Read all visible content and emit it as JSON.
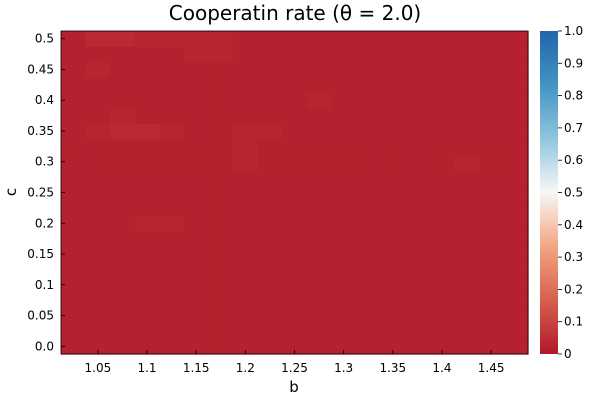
{
  "chart_data": {
    "type": "heatmap",
    "title": "Cooperatin rate (θ = 2.0)",
    "xlabel": "b",
    "ylabel": "c",
    "x": [
      1.025,
      1.05,
      1.075,
      1.1,
      1.125,
      1.15,
      1.175,
      1.2,
      1.225,
      1.25,
      1.275,
      1.3,
      1.325,
      1.35,
      1.375,
      1.4,
      1.425,
      1.45,
      1.475
    ],
    "y": [
      0.0,
      0.025,
      0.05,
      0.075,
      0.1,
      0.125,
      0.15,
      0.175,
      0.2,
      0.225,
      0.25,
      0.275,
      0.3,
      0.325,
      0.35,
      0.375,
      0.4,
      0.425,
      0.45,
      0.475,
      0.5
    ],
    "values": [
      [
        0.02,
        0.02,
        0.02,
        0.02,
        0.02,
        0.02,
        0.02,
        0.02,
        0.02,
        0.02,
        0.02,
        0.02,
        0.02,
        0.02,
        0.02,
        0.02,
        0.02,
        0.02,
        0.02
      ],
      [
        0.02,
        0.02,
        0.02,
        0.02,
        0.02,
        0.02,
        0.02,
        0.02,
        0.02,
        0.02,
        0.02,
        0.02,
        0.02,
        0.02,
        0.02,
        0.02,
        0.02,
        0.02,
        0.02
      ],
      [
        0.02,
        0.02,
        0.02,
        0.02,
        0.02,
        0.02,
        0.02,
        0.02,
        0.02,
        0.02,
        0.02,
        0.02,
        0.02,
        0.02,
        0.02,
        0.02,
        0.02,
        0.02,
        0.02
      ],
      [
        0.02,
        0.02,
        0.02,
        0.02,
        0.02,
        0.02,
        0.02,
        0.02,
        0.02,
        0.02,
        0.02,
        0.02,
        0.02,
        0.02,
        0.02,
        0.02,
        0.02,
        0.02,
        0.02
      ],
      [
        0.02,
        0.02,
        0.02,
        0.02,
        0.02,
        0.02,
        0.02,
        0.02,
        0.02,
        0.02,
        0.02,
        0.02,
        0.02,
        0.02,
        0.02,
        0.02,
        0.02,
        0.02,
        0.02
      ],
      [
        0.02,
        0.02,
        0.02,
        0.02,
        0.02,
        0.02,
        0.02,
        0.02,
        0.02,
        0.02,
        0.02,
        0.02,
        0.02,
        0.02,
        0.02,
        0.02,
        0.02,
        0.02,
        0.02
      ],
      [
        0.02,
        0.02,
        0.02,
        0.02,
        0.02,
        0.02,
        0.02,
        0.02,
        0.02,
        0.02,
        0.02,
        0.02,
        0.02,
        0.02,
        0.02,
        0.02,
        0.02,
        0.02,
        0.02
      ],
      [
        0.02,
        0.02,
        0.02,
        0.02,
        0.02,
        0.02,
        0.02,
        0.02,
        0.02,
        0.02,
        0.02,
        0.02,
        0.02,
        0.02,
        0.02,
        0.02,
        0.02,
        0.02,
        0.02
      ],
      [
        0.02,
        0.02,
        0.02,
        0.03,
        0.03,
        0.02,
        0.02,
        0.02,
        0.02,
        0.02,
        0.02,
        0.02,
        0.02,
        0.02,
        0.02,
        0.02,
        0.02,
        0.02,
        0.02
      ],
      [
        0.02,
        0.02,
        0.02,
        0.02,
        0.02,
        0.02,
        0.02,
        0.02,
        0.02,
        0.02,
        0.02,
        0.02,
        0.02,
        0.02,
        0.02,
        0.02,
        0.02,
        0.02,
        0.02
      ],
      [
        0.02,
        0.02,
        0.02,
        0.02,
        0.02,
        0.02,
        0.02,
        0.02,
        0.02,
        0.02,
        0.02,
        0.02,
        0.02,
        0.02,
        0.02,
        0.02,
        0.02,
        0.02,
        0.02
      ],
      [
        0.02,
        0.02,
        0.02,
        0.02,
        0.02,
        0.02,
        0.02,
        0.02,
        0.02,
        0.02,
        0.02,
        0.02,
        0.02,
        0.02,
        0.02,
        0.02,
        0.02,
        0.02,
        0.02
      ],
      [
        0.02,
        0.02,
        0.02,
        0.02,
        0.02,
        0.02,
        0.02,
        0.03,
        0.02,
        0.02,
        0.02,
        0.02,
        0.02,
        0.02,
        0.02,
        0.02,
        0.03,
        0.02,
        0.02
      ],
      [
        0.02,
        0.02,
        0.02,
        0.02,
        0.02,
        0.02,
        0.02,
        0.03,
        0.02,
        0.02,
        0.02,
        0.02,
        0.02,
        0.02,
        0.02,
        0.02,
        0.02,
        0.02,
        0.02
      ],
      [
        0.02,
        0.03,
        0.04,
        0.04,
        0.03,
        0.02,
        0.02,
        0.03,
        0.03,
        0.02,
        0.02,
        0.02,
        0.02,
        0.02,
        0.02,
        0.02,
        0.02,
        0.02,
        0.02
      ],
      [
        0.02,
        0.02,
        0.03,
        0.02,
        0.02,
        0.02,
        0.02,
        0.02,
        0.02,
        0.02,
        0.02,
        0.02,
        0.02,
        0.02,
        0.02,
        0.02,
        0.02,
        0.02,
        0.02
      ],
      [
        0.02,
        0.02,
        0.02,
        0.02,
        0.02,
        0.02,
        0.02,
        0.02,
        0.02,
        0.02,
        0.03,
        0.02,
        0.02,
        0.02,
        0.02,
        0.02,
        0.02,
        0.02,
        0.02
      ],
      [
        0.02,
        0.02,
        0.02,
        0.02,
        0.02,
        0.02,
        0.02,
        0.02,
        0.02,
        0.02,
        0.02,
        0.02,
        0.02,
        0.02,
        0.02,
        0.02,
        0.02,
        0.02,
        0.02
      ],
      [
        0.02,
        0.03,
        0.02,
        0.02,
        0.02,
        0.02,
        0.02,
        0.02,
        0.02,
        0.02,
        0.02,
        0.02,
        0.02,
        0.02,
        0.02,
        0.02,
        0.02,
        0.02,
        0.02
      ],
      [
        0.02,
        0.02,
        0.02,
        0.02,
        0.02,
        0.03,
        0.03,
        0.02,
        0.02,
        0.02,
        0.02,
        0.02,
        0.02,
        0.02,
        0.02,
        0.02,
        0.02,
        0.02,
        0.02
      ],
      [
        0.02,
        0.04,
        0.04,
        0.03,
        0.03,
        0.03,
        0.03,
        0.02,
        0.02,
        0.02,
        0.02,
        0.02,
        0.02,
        0.02,
        0.02,
        0.02,
        0.02,
        0.02,
        0.02
      ]
    ],
    "xticks": [
      1.05,
      1.1,
      1.15,
      1.2,
      1.25,
      1.3,
      1.35,
      1.4,
      1.45
    ],
    "xtick_labels": [
      "1.05",
      "1.1",
      "1.15",
      "1.2",
      "1.25",
      "1.3",
      "1.35",
      "1.4",
      "1.45"
    ],
    "yticks": [
      0.0,
      0.05,
      0.1,
      0.15,
      0.2,
      0.25,
      0.3,
      0.35,
      0.4,
      0.45,
      0.5
    ],
    "ytick_labels": [
      "0.0",
      "0.05",
      "0.1",
      "0.15",
      "0.2",
      "0.25",
      "0.3",
      "0.35",
      "0.4",
      "0.45",
      "0.5"
    ],
    "xlim": [
      1.0125,
      1.4875
    ],
    "ylim": [
      -0.0125,
      0.5125
    ],
    "colorbar": {
      "range": [
        0,
        1
      ],
      "ticks": [
        0,
        0.1,
        0.2,
        0.3,
        0.4,
        0.5,
        0.6,
        0.7,
        0.8,
        0.9,
        1.0
      ],
      "tick_labels": [
        "0",
        "0.1",
        "0.2",
        "0.3",
        "0.4",
        "0.5",
        "0.6",
        "0.7",
        "0.8",
        "0.9",
        "1.0"
      ],
      "colormap": [
        "#b2182b",
        "#d6604d",
        "#f4a582",
        "#f7f7f7",
        "#92c5de",
        "#4393c3",
        "#2166ac"
      ]
    }
  }
}
